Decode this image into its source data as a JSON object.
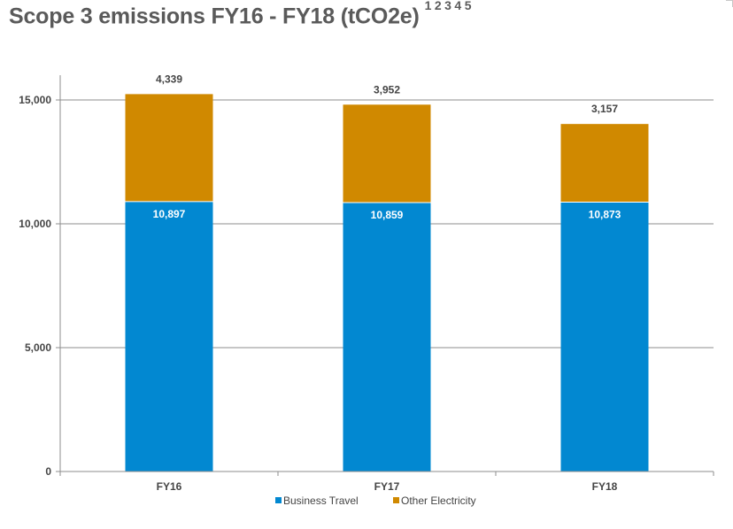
{
  "title": {
    "text": "Scope 3 emissions FY16 - FY18 (tCO2e)",
    "footnotes": "1 2 3 4 5"
  },
  "chart_data": {
    "type": "bar",
    "stacked": true,
    "categories": [
      "FY16",
      "FY17",
      "FY18"
    ],
    "series": [
      {
        "name": "Business Travel",
        "values": [
          10897,
          10859,
          10873
        ],
        "color": "#0288d1",
        "value_labels": [
          "10,897",
          "10,859",
          "10,873"
        ]
      },
      {
        "name": "Other Electricity",
        "values": [
          4339,
          3952,
          3157
        ],
        "color": "#d08900",
        "value_labels": [
          "4,339",
          "3,952",
          "3,157"
        ]
      }
    ],
    "ylim": [
      0,
      16000
    ],
    "yticks": [
      0,
      5000,
      10000,
      15000
    ],
    "ytick_labels": [
      "0",
      "5,000",
      "10,000",
      "15,000"
    ],
    "grid": true,
    "legend": "bottom-center"
  }
}
